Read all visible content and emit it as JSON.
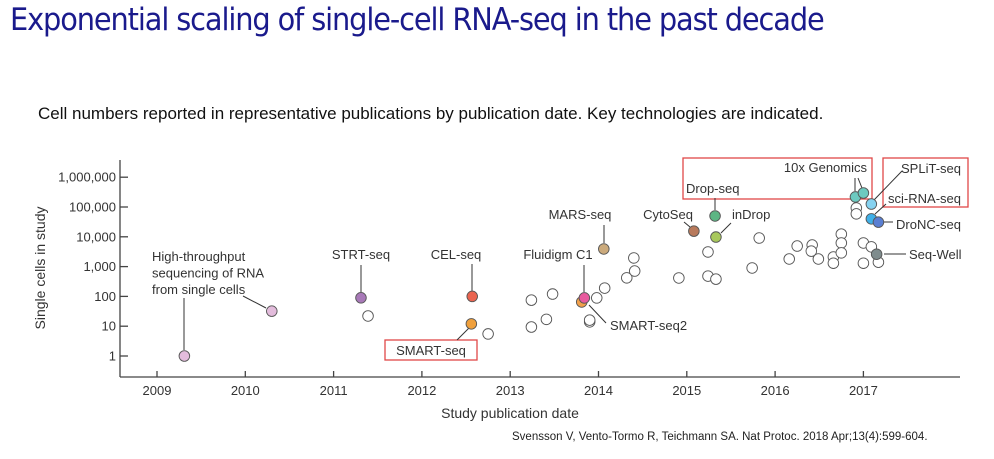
{
  "title": "Exponential scaling of single-cell RNA-seq in the past decade",
  "subtitle": "Cell numbers reported in representative publications by publication date. Key technologies are indicated.",
  "citation": "Svensson V, Vento-Tormo R, Teichmann SA. Nat Protoc. 2018 Apr;13(4):599-604.",
  "chart_data": {
    "type": "scatter",
    "xlabel": "Study publication date",
    "ylabel": "Single cells in study",
    "yscale": "log",
    "xlim": [
      2008.6,
      2018.0
    ],
    "ylim": [
      0.4,
      3000000
    ],
    "xticks": [
      2009,
      2010,
      2011,
      2012,
      2013,
      2014,
      2015,
      2016,
      2017
    ],
    "xtick_labels": [
      "2009",
      "2010",
      "2011",
      "2012",
      "2013",
      "2014",
      "2015",
      "2016",
      "2017"
    ],
    "yticks": [
      1,
      10,
      100,
      1000,
      10000,
      100000,
      1000000
    ],
    "ytick_labels": [
      "1",
      "10",
      "100",
      "1,000",
      "10,000",
      "100,000",
      "1,000,000"
    ],
    "grid": false,
    "highlighted": [
      {
        "label": "High-throughput sequencing of RNA from single cells",
        "lines": [
          "High-throughput",
          "sequencing of RNA",
          "from single cells"
        ],
        "points": [
          [
            2009.31,
            1
          ],
          [
            2010.3,
            32
          ]
        ],
        "color": "#e3bcdc"
      },
      {
        "label": "STRT-seq",
        "points": [
          [
            2011.31,
            90
          ]
        ],
        "color": "#a879b8"
      },
      {
        "label": "CEL-seq",
        "points": [
          [
            2012.57,
            100
          ]
        ],
        "color": "#ea6450"
      },
      {
        "label": "SMART-seq",
        "points": [
          [
            2012.56,
            12
          ]
        ],
        "color": "#f0a03c",
        "boxed": true
      },
      {
        "label": "SMART-seq2",
        "points": [
          [
            2013.81,
            65
          ]
        ],
        "color": "#f2a04a"
      },
      {
        "label": "Fluidigm C1",
        "points": [
          [
            2013.84,
            89
          ]
        ],
        "color": "#e85a9e"
      },
      {
        "label": "MARS-seq",
        "points": [
          [
            2014.06,
            3900
          ]
        ],
        "color": "#cbaa7c"
      },
      {
        "label": "CytoSeq",
        "points": [
          [
            2015.08,
            15500
          ]
        ],
        "color": "#b87a5c"
      },
      {
        "label": "Drop-seq",
        "points": [
          [
            2015.32,
            50000
          ]
        ],
        "color": "#5db584",
        "boxed": true
      },
      {
        "label": "inDrop",
        "points": [
          [
            2015.33,
            9800
          ]
        ],
        "color": "#a8c85c"
      },
      {
        "label": "10x Genomics",
        "points": [
          [
            2016.91,
            218000
          ],
          [
            2017.0,
            295000
          ]
        ],
        "color": "#6ccac0",
        "boxed": true
      },
      {
        "label": "SPLiT-seq",
        "points": [
          [
            2017.09,
            126000
          ]
        ],
        "color": "#86d2f0",
        "boxed": true
      },
      {
        "label": "sci-RNA-seq",
        "points": [
          [
            2017.09,
            40000
          ]
        ],
        "color": "#3fb0e8",
        "boxed": true
      },
      {
        "label": "DroNC-seq",
        "points": [
          [
            2017.17,
            31000
          ]
        ],
        "color": "#5a7fd2"
      },
      {
        "label": "Seq-Well",
        "points": [
          [
            2017.15,
            2600
          ]
        ],
        "color": "#7f8c8d"
      }
    ],
    "other_points": [
      [
        2011.39,
        22
      ],
      [
        2012.75,
        5.5
      ],
      [
        2013.24,
        75
      ],
      [
        2013.48,
        120
      ],
      [
        2013.24,
        9.4
      ],
      [
        2013.41,
        17
      ],
      [
        2013.9,
        14
      ],
      [
        2013.9,
        16
      ],
      [
        2013.98,
        89
      ],
      [
        2014.07,
        190
      ],
      [
        2014.32,
        420
      ],
      [
        2014.41,
        710
      ],
      [
        2014.4,
        1950
      ],
      [
        2014.91,
        415
      ],
      [
        2015.24,
        3100
      ],
      [
        2015.24,
        480
      ],
      [
        2015.33,
        380
      ],
      [
        2015.82,
        9100
      ],
      [
        2015.74,
        900
      ],
      [
        2016.16,
        1800
      ],
      [
        2016.25,
        4900
      ],
      [
        2016.42,
        5300
      ],
      [
        2016.41,
        3300
      ],
      [
        2016.49,
        1800
      ],
      [
        2016.66,
        2100
      ],
      [
        2016.66,
        1300
      ],
      [
        2016.75,
        12300
      ],
      [
        2016.75,
        6200
      ],
      [
        2016.75,
        2900
      ],
      [
        2016.92,
        93000
      ],
      [
        2016.92,
        59000
      ],
      [
        2017.0,
        6200
      ],
      [
        2017.09,
        4600
      ],
      [
        2017.0,
        1300
      ],
      [
        2017.17,
        1400
      ]
    ],
    "highlight_box_color": "#e04848"
  }
}
